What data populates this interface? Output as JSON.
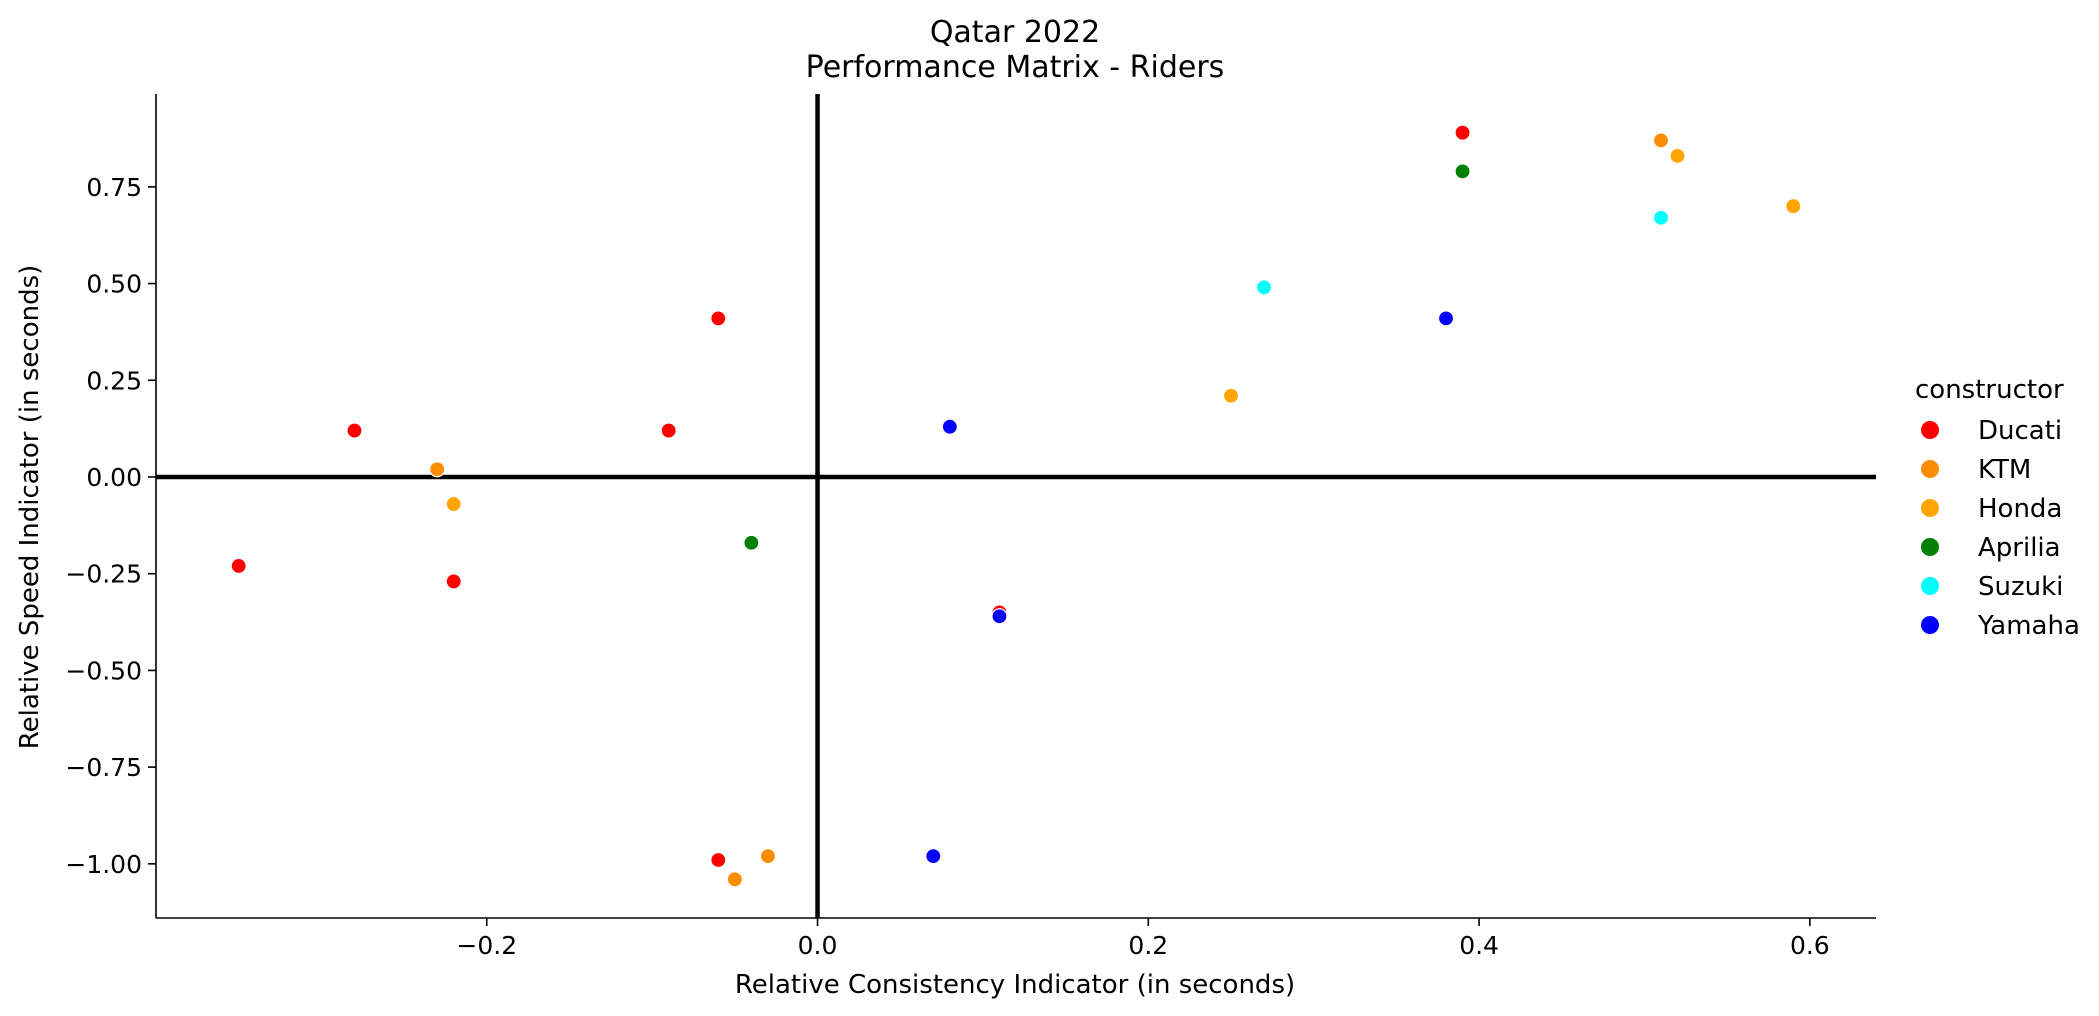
{
  "chart_data": {
    "type": "scatter",
    "title": [
      "Qatar 2022",
      "Performance Matrix - Riders"
    ],
    "xlabel": "Relative Consistency Indicator (in seconds)",
    "ylabel": "Relative Speed Indicator (in seconds)",
    "xlim": [
      -0.4,
      0.64
    ],
    "ylim": [
      -1.14,
      0.99
    ],
    "xticks": [
      -0.2,
      0.0,
      0.2,
      0.4,
      0.6
    ],
    "xtick_labels": [
      "−0.2",
      "0.0",
      "0.2",
      "0.4",
      "0.6"
    ],
    "yticks": [
      0.75,
      0.5,
      0.25,
      0.0,
      -0.25,
      -0.5,
      -0.75,
      -1.0
    ],
    "ytick_labels": [
      "0.75",
      "0.50",
      "0.25",
      "0.00",
      "−0.25",
      "−0.50",
      "−0.75",
      "−1.00"
    ],
    "reference_lines": {
      "x": 0.0,
      "y": 0.0
    },
    "grid": false,
    "legend": {
      "title": "constructor",
      "placement": "right"
    },
    "series": [
      {
        "name": "Ducati",
        "color": "#ff0000",
        "points": [
          [
            0.39,
            0.89
          ],
          [
            -0.06,
            0.41
          ],
          [
            -0.28,
            0.12
          ],
          [
            -0.09,
            0.12
          ],
          [
            -0.35,
            -0.23
          ],
          [
            -0.22,
            -0.27
          ],
          [
            0.11,
            -0.35
          ],
          [
            -0.06,
            -0.99
          ]
        ]
      },
      {
        "name": "KTM",
        "color": "#ff8c00",
        "points": [
          [
            0.51,
            0.87
          ],
          [
            -0.23,
            0.02
          ],
          [
            -0.03,
            -0.98
          ],
          [
            -0.05,
            -1.04
          ]
        ]
      },
      {
        "name": "Honda",
        "color": "#ffa500",
        "points": [
          [
            0.52,
            0.83
          ],
          [
            0.59,
            0.7
          ],
          [
            0.25,
            0.21
          ],
          [
            -0.22,
            -0.07
          ]
        ]
      },
      {
        "name": "Aprilia",
        "color": "#008000",
        "points": [
          [
            0.39,
            0.79
          ],
          [
            -0.04,
            -0.17
          ]
        ]
      },
      {
        "name": "Suzuki",
        "color": "#00ffff",
        "points": [
          [
            0.51,
            0.67
          ],
          [
            0.27,
            0.49
          ]
        ]
      },
      {
        "name": "Yamaha",
        "color": "#0000ff",
        "points": [
          [
            0.38,
            0.41
          ],
          [
            0.08,
            0.13
          ],
          [
            0.11,
            -0.36
          ],
          [
            0.07,
            -0.98
          ]
        ]
      }
    ]
  }
}
